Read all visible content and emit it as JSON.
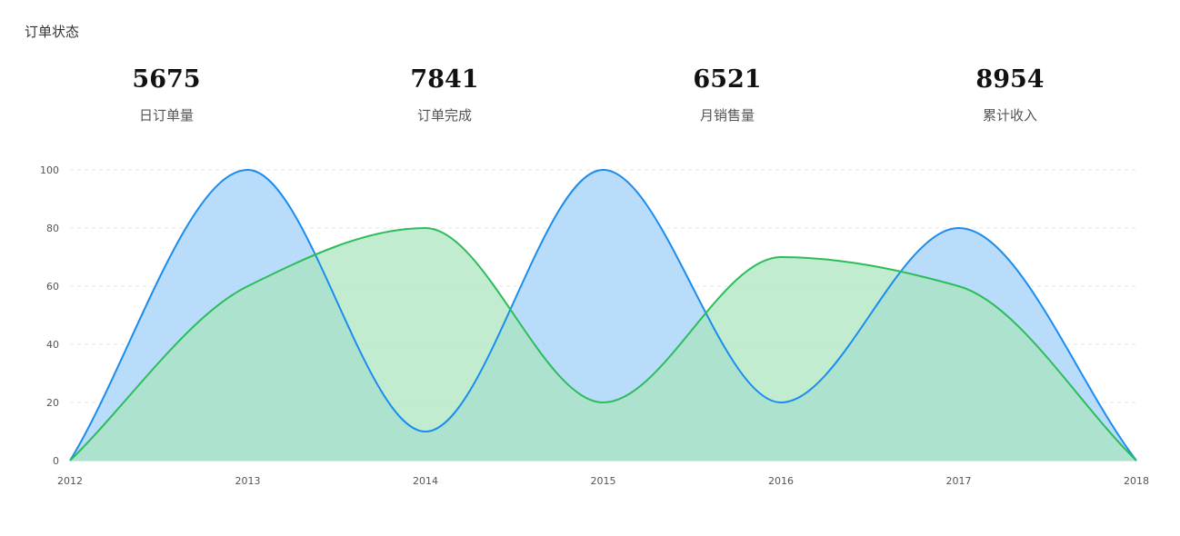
{
  "title": "订单状态",
  "stats": [
    {
      "value": "5675",
      "label": "日订单量"
    },
    {
      "value": "7841",
      "label": "订单完成"
    },
    {
      "value": "6521",
      "label": "月销售量"
    },
    {
      "value": "8954",
      "label": "累计收入"
    }
  ],
  "colors": {
    "series_a": "#1a8cf0",
    "series_a_fill": "#9dcdfa",
    "series_b": "#2bbd5a",
    "series_b_fill": "#a6e4bb",
    "grid": "#e6e6e6"
  },
  "chart_data": {
    "type": "area",
    "x": [
      "2012",
      "2013",
      "2014",
      "2015",
      "2016",
      "2017",
      "2018"
    ],
    "series": [
      {
        "values": [
          0,
          100,
          10,
          100,
          20,
          80,
          0
        ]
      },
      {
        "values": [
          0,
          60,
          80,
          20,
          70,
          60,
          0
        ]
      }
    ],
    "yticks": [
      0,
      20,
      40,
      60,
      80,
      100
    ],
    "ylim": [
      0,
      100
    ],
    "grid": true,
    "smooth": true
  }
}
